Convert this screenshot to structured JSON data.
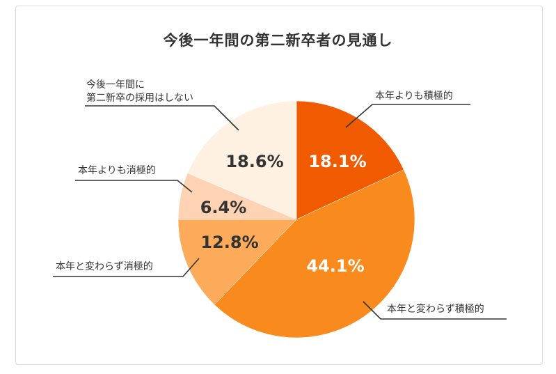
{
  "chart_data": {
    "type": "pie",
    "title": "今後一年間の第二新卒者の見通し",
    "slices": [
      {
        "label": "本年よりも積極的",
        "value": 18.1,
        "display": "18.1%",
        "color": "#f05a00",
        "text_color": "#ffffff"
      },
      {
        "label": "本年と変わらず積極的",
        "value": 44.1,
        "display": "44.1%",
        "color": "#f98b1e",
        "text_color": "#ffffff"
      },
      {
        "label": "本年と変わらず消極的",
        "value": 12.8,
        "display": "12.8%",
        "color": "#fcab5a",
        "text_color": "#333333"
      },
      {
        "label": "本年よりも消極的",
        "value": 6.4,
        "display": "6.4%",
        "color": "#fdd3b4",
        "text_color": "#333333"
      },
      {
        "label": "今後一年間に\n第二新卒の採用はしない",
        "value": 18.6,
        "display": "18.6%",
        "color": "#fef1e2",
        "text_color": "#333333"
      }
    ]
  }
}
